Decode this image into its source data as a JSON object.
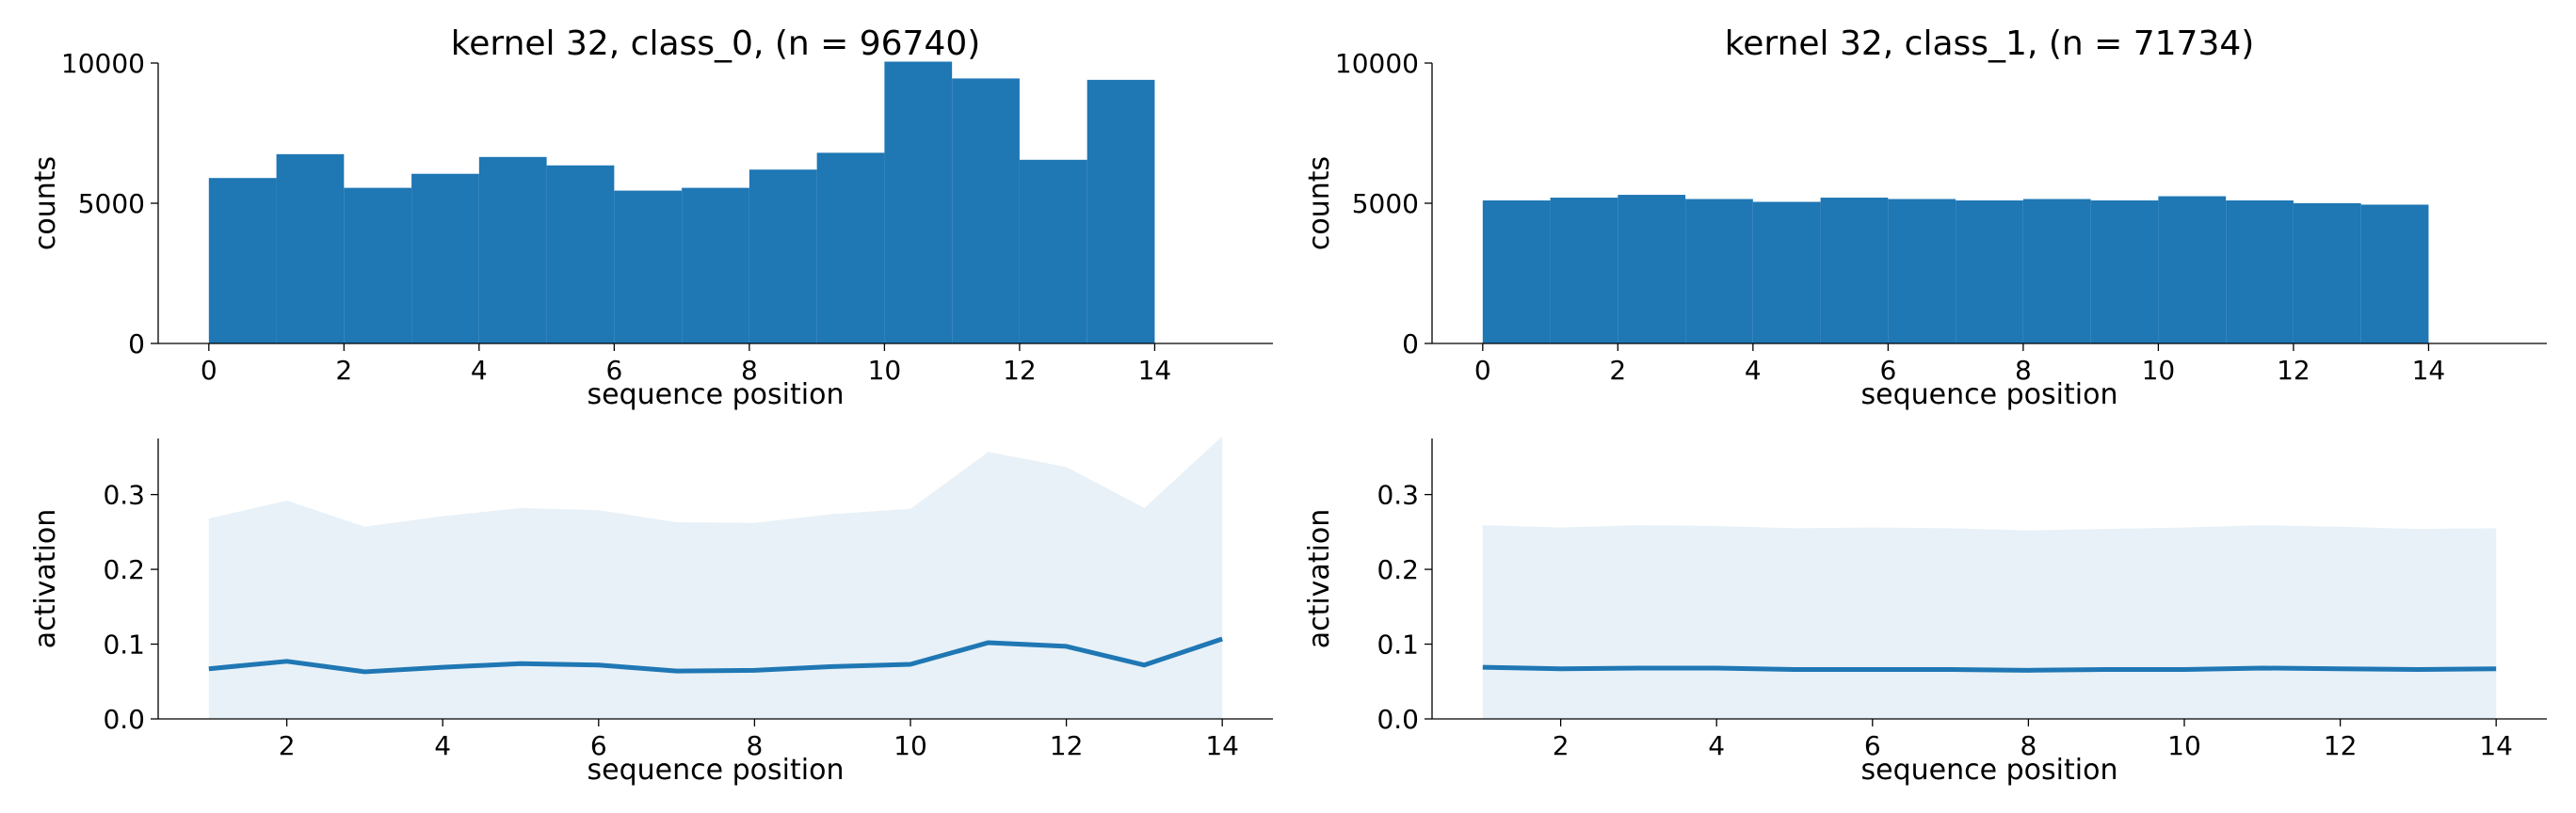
{
  "chart_data": [
    {
      "type": "bar",
      "title": "kernel 32, class_0, (n = 96740)",
      "xlabel": "sequence position",
      "ylabel": "counts",
      "bin_edges": [
        0,
        1,
        2,
        3,
        4,
        5,
        6,
        7,
        8,
        9,
        10,
        11,
        12,
        13,
        14
      ],
      "values": [
        5900,
        6750,
        5550,
        6050,
        6650,
        6350,
        5450,
        5550,
        6200,
        6800,
        10050,
        9450,
        6550,
        9400
      ],
      "xlim": [
        -0.75,
        15.75
      ],
      "ylim": [
        0,
        10000
      ],
      "xticks": [
        "0",
        "2",
        "4",
        "6",
        "8",
        "10",
        "12",
        "14"
      ],
      "yticks": [
        "0",
        "5000",
        "10000"
      ],
      "grid": false
    },
    {
      "type": "bar",
      "title": "kernel 32, class_1, (n = 71734)",
      "xlabel": "sequence position",
      "ylabel": "counts",
      "bin_edges": [
        0,
        1,
        2,
        3,
        4,
        5,
        6,
        7,
        8,
        9,
        10,
        11,
        12,
        13,
        14
      ],
      "values": [
        5100,
        5200,
        5300,
        5150,
        5050,
        5200,
        5150,
        5100,
        5150,
        5100,
        5250,
        5100,
        5000,
        4950
      ],
      "xlim": [
        -0.75,
        15.75
      ],
      "ylim": [
        0,
        10000
      ],
      "xticks": [
        "0",
        "2",
        "4",
        "6",
        "8",
        "10",
        "12",
        "14"
      ],
      "yticks": [
        "0",
        "5000",
        "10000"
      ],
      "grid": false
    },
    {
      "type": "line",
      "xlabel": "sequence position",
      "ylabel": "activation",
      "x": [
        1,
        2,
        3,
        4,
        5,
        6,
        7,
        8,
        9,
        10,
        11,
        12,
        13,
        14
      ],
      "series": [
        {
          "values": [
            0.067,
            0.077,
            0.063,
            0.069,
            0.074,
            0.072,
            0.064,
            0.065,
            0.07,
            0.073,
            0.102,
            0.097,
            0.072,
            0.107
          ],
          "band_upper": [
            0.268,
            0.292,
            0.257,
            0.271,
            0.282,
            0.279,
            0.263,
            0.262,
            0.274,
            0.281,
            0.357,
            0.337,
            0.282,
            0.378
          ],
          "band_lower": [
            0,
            0,
            0,
            0,
            0,
            0,
            0,
            0,
            0,
            0,
            0,
            0,
            0,
            0
          ]
        }
      ],
      "xlim": [
        0.35,
        14.65
      ],
      "ylim": [
        0,
        0.375
      ],
      "xticks": [
        "2",
        "4",
        "6",
        "8",
        "10",
        "12",
        "14"
      ],
      "yticks": [
        "0.0",
        "0.1",
        "0.2",
        "0.3"
      ],
      "grid": false
    },
    {
      "type": "line",
      "xlabel": "sequence position",
      "ylabel": "activation",
      "x": [
        1,
        2,
        3,
        4,
        5,
        6,
        7,
        8,
        9,
        10,
        11,
        12,
        13,
        14
      ],
      "series": [
        {
          "values": [
            0.069,
            0.067,
            0.068,
            0.068,
            0.066,
            0.066,
            0.066,
            0.065,
            0.066,
            0.066,
            0.068,
            0.067,
            0.066,
            0.067
          ],
          "band_upper": [
            0.259,
            0.256,
            0.259,
            0.258,
            0.255,
            0.256,
            0.255,
            0.252,
            0.254,
            0.256,
            0.259,
            0.257,
            0.254,
            0.255
          ],
          "band_lower": [
            0,
            0,
            0,
            0,
            0,
            0,
            0,
            0,
            0,
            0,
            0,
            0,
            0,
            0
          ]
        }
      ],
      "xlim": [
        0.35,
        14.65
      ],
      "ylim": [
        0,
        0.375
      ],
      "xticks": [
        "2",
        "4",
        "6",
        "8",
        "10",
        "12",
        "14"
      ],
      "yticks": [
        "0.0",
        "0.1",
        "0.2",
        "0.3"
      ],
      "grid": false
    }
  ]
}
